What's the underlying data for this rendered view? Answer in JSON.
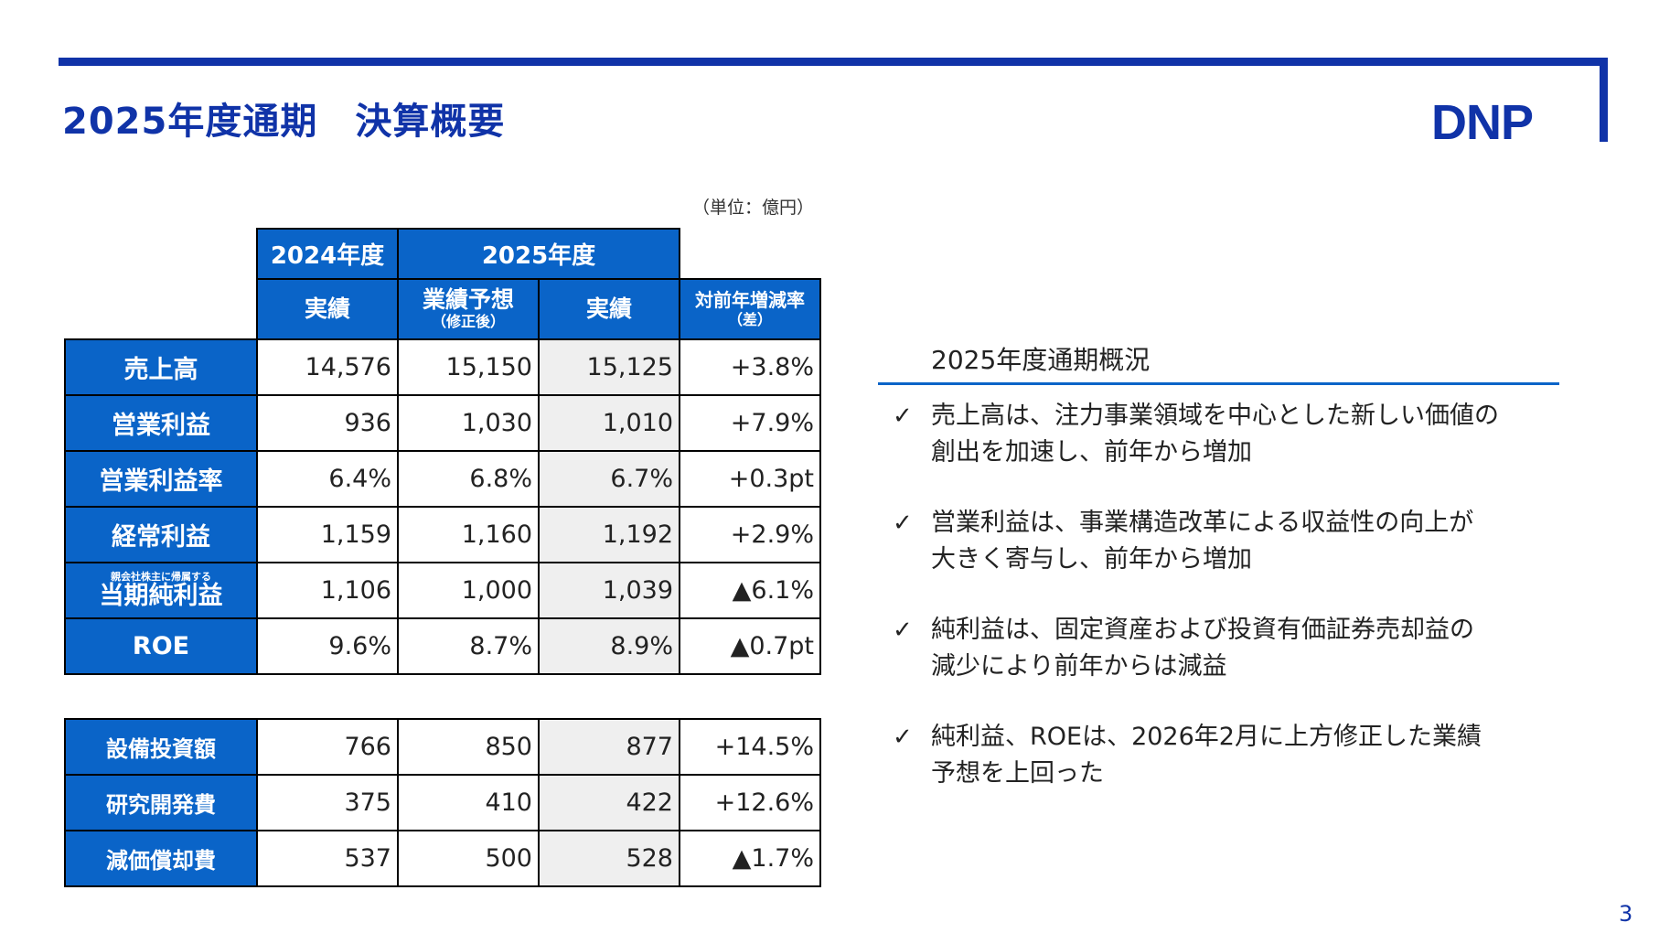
{
  "header": {
    "title": "2025年度通期　決算概要",
    "logo": "DNP"
  },
  "unit_note": "（単位：億円）",
  "table": {
    "col_2024": "2024年度",
    "col_2025": "2025年度",
    "sub_actual_2024": "実績",
    "sub_forecast": "業績予想",
    "sub_forecast_note": "（修正後）",
    "sub_actual_2025": "実績",
    "sub_yoy": "対前年増減率",
    "sub_yoy_note": "（差）",
    "rows": [
      {
        "label": "売上高",
        "a2024": "14,576",
        "forecast": "15,150",
        "a2025": "15,125",
        "yoy": "+3.8%"
      },
      {
        "label": "営業利益",
        "a2024": "936",
        "forecast": "1,030",
        "a2025": "1,010",
        "yoy": "+7.9%"
      },
      {
        "label": "営業利益率",
        "a2024": "6.4%",
        "forecast": "6.8%",
        "a2025": "6.7%",
        "yoy": "+0.3pt"
      },
      {
        "label": "経常利益",
        "a2024": "1,159",
        "forecast": "1,160",
        "a2025": "1,192",
        "yoy": "+2.9%"
      },
      {
        "label_small": "親会社株主に帰属する",
        "label": "当期純利益",
        "a2024": "1,106",
        "forecast": "1,000",
        "a2025": "1,039",
        "yoy": "▲6.1%"
      },
      {
        "label": "ROE",
        "a2024": "9.6%",
        "forecast": "8.7%",
        "a2025": "8.9%",
        "yoy": "▲0.7pt"
      }
    ],
    "sub_rows": [
      {
        "label": "設備投資額",
        "a2024": "766",
        "forecast": "850",
        "a2025": "877",
        "yoy": "+14.5%"
      },
      {
        "label": "研究開発費",
        "a2024": "375",
        "forecast": "410",
        "a2025": "422",
        "yoy": "+12.6%"
      },
      {
        "label": "減価償却費",
        "a2024": "537",
        "forecast": "500",
        "a2025": "528",
        "yoy": "▲1.7%"
      }
    ]
  },
  "summary": {
    "title": "2025年度通期概況",
    "check": "✓",
    "bullets": [
      {
        "line1": "売上高は、注力事業領域を中心とした新しい価値の",
        "line2": "創出を加速し、前年から増加"
      },
      {
        "line1": "営業利益は、事業構造改革による収益性の向上が",
        "line2": "大きく寄与し、前年から増加"
      },
      {
        "line1": "純利益は、固定資産および投資有価証券売却益の",
        "line2": "減少により前年からは減益"
      },
      {
        "line1": "純利益、ROEは、2026年2月に上方修正した業績",
        "line2": "予想を上回った"
      }
    ]
  },
  "page_number": "3",
  "colors": {
    "brand_navy": "#1033a8",
    "header_blue": "#0a64c8",
    "shade_gray": "#efefef"
  }
}
